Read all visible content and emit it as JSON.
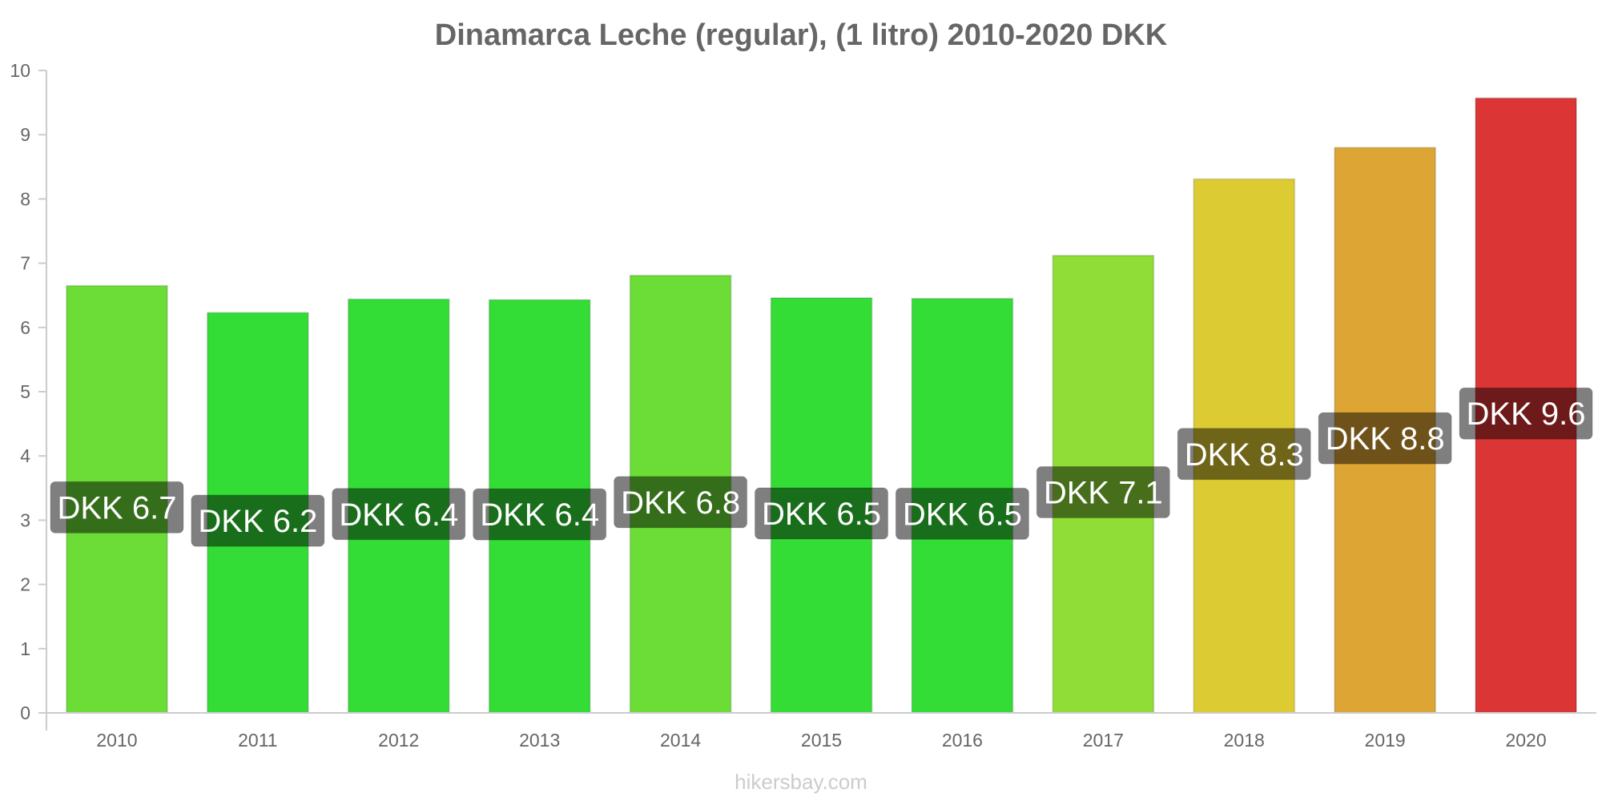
{
  "chart_data": {
    "type": "bar",
    "title": "Dinamarca Leche (regular), (1 litro) 2010-2020 DKK",
    "xlabel": "",
    "ylabel": "",
    "categories": [
      "2010",
      "2011",
      "2012",
      "2013",
      "2014",
      "2015",
      "2016",
      "2017",
      "2018",
      "2019",
      "2020"
    ],
    "values": [
      6.65,
      6.23,
      6.44,
      6.43,
      6.81,
      6.46,
      6.45,
      7.12,
      8.31,
      8.8,
      9.57
    ],
    "data_labels": [
      "DKK 6.7",
      "DKK 6.2",
      "DKK 6.4",
      "DKK 6.4",
      "DKK 6.8",
      "DKK 6.5",
      "DKK 6.5",
      "DKK 7.1",
      "DKK 8.3",
      "DKK 8.8",
      "DKK 9.6"
    ],
    "bar_colors": [
      "#6bdd36",
      "#33dd36",
      "#33dd36",
      "#33dd36",
      "#6bdd36",
      "#33dd36",
      "#33dd36",
      "#8fdd36",
      "#dccb33",
      "#dca534",
      "#dc3535"
    ],
    "yticks": [
      "0",
      "1",
      "2",
      "3",
      "4",
      "5",
      "6",
      "7",
      "8",
      "9",
      "10"
    ],
    "ylim": [
      0,
      10
    ],
    "grid": false,
    "legend": "none"
  },
  "watermark": "hikersbay.com"
}
